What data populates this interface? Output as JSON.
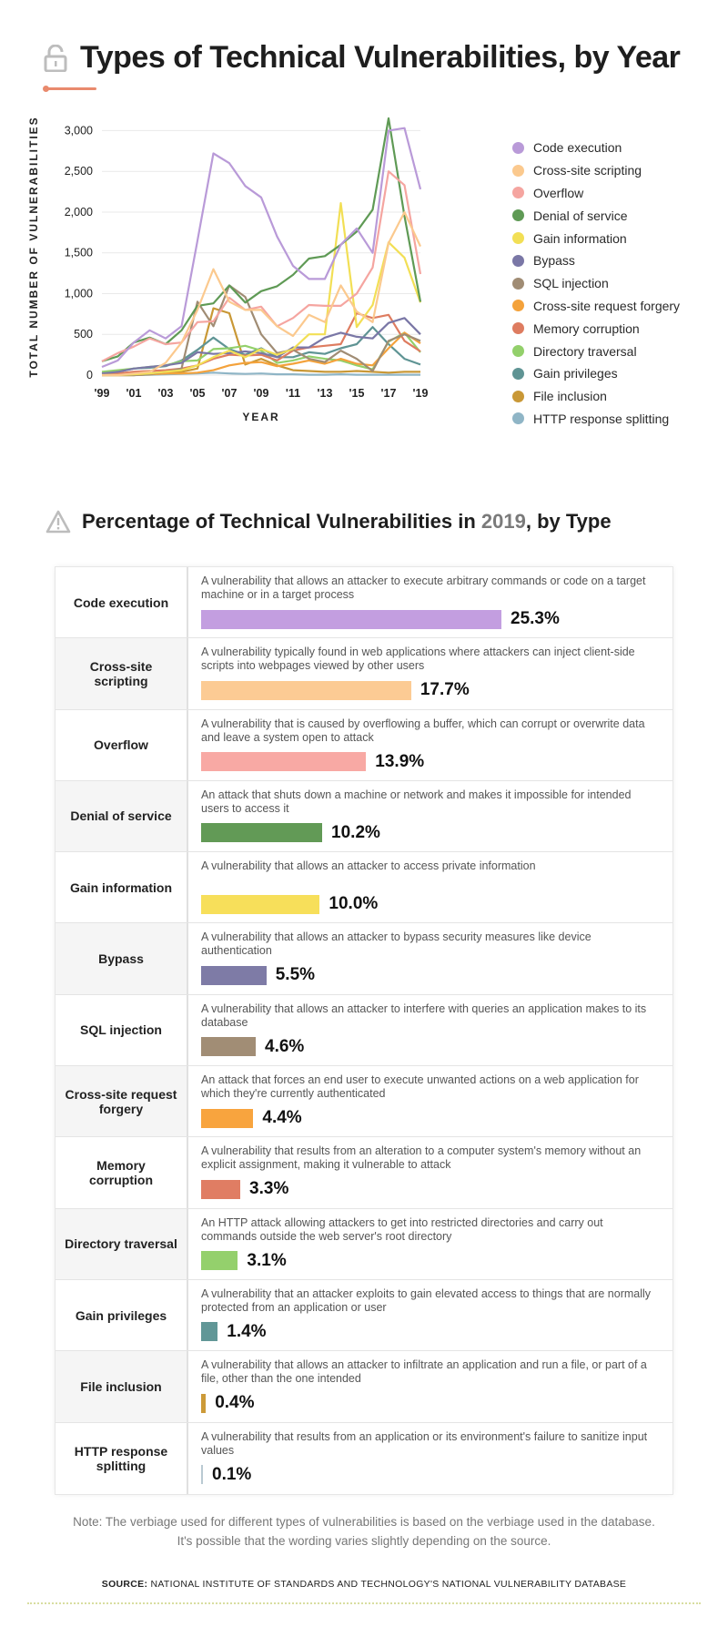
{
  "header": {
    "title": "Types of Technical Vulnerabilities, by Year"
  },
  "section2": {
    "title_prefix": "Percentage of Technical Vulnerabilities in ",
    "title_year": "2019",
    "title_suffix": ", by Type"
  },
  "chart_data": {
    "type": "line",
    "xlabel": "YEAR",
    "ylabel": "TOTAL NUMBER OF VULNERABILITIES",
    "x": [
      1999,
      2000,
      2001,
      2002,
      2003,
      2004,
      2005,
      2006,
      2007,
      2008,
      2009,
      2010,
      2011,
      2012,
      2013,
      2014,
      2015,
      2016,
      2017,
      2018,
      2019
    ],
    "x_ticks": [
      "'99",
      "'01",
      "'03",
      "'05",
      "'07",
      "'09",
      "'11",
      "'13",
      "'15",
      "'17",
      "'19"
    ],
    "x_tick_values": [
      1999,
      2001,
      2003,
      2005,
      2007,
      2009,
      2011,
      2013,
      2015,
      2017,
      2019
    ],
    "y_ticks": [
      "0",
      "500",
      "1,000",
      "1,500",
      "2,000",
      "2,500",
      "3,000"
    ],
    "y_tick_values": [
      0,
      500,
      1000,
      1500,
      2000,
      2500,
      3000
    ],
    "ylim": [
      0,
      3150
    ],
    "grid": true,
    "legend_position": "right",
    "series": [
      {
        "name": "Code execution",
        "color": "#b99ad8",
        "values": [
          100,
          180,
          400,
          550,
          450,
          600,
          1650,
          2720,
          2600,
          2320,
          2180,
          1700,
          1340,
          1180,
          1180,
          1600,
          1800,
          1500,
          3000,
          3030,
          2280
        ]
      },
      {
        "name": "Cross-site scripting",
        "color": "#fbc98e",
        "values": [
          0,
          0,
          20,
          40,
          150,
          400,
          800,
          1300,
          900,
          800,
          800,
          600,
          480,
          740,
          650,
          1100,
          780,
          650,
          1620,
          2000,
          1580
        ]
      },
      {
        "name": "Overflow",
        "color": "#f5a5a0",
        "values": [
          170,
          270,
          350,
          450,
          380,
          400,
          650,
          660,
          950,
          800,
          840,
          600,
          700,
          860,
          850,
          850,
          1000,
          1320,
          2500,
          2330,
          1240
        ]
      },
      {
        "name": "Denial of service",
        "color": "#5f9a55",
        "values": [
          170,
          230,
          400,
          460,
          380,
          550,
          850,
          880,
          1100,
          890,
          1030,
          1090,
          1230,
          1430,
          1460,
          1600,
          1760,
          2030,
          3150,
          1950,
          900
        ]
      },
      {
        "name": "Gain information",
        "color": "#f2df55",
        "values": [
          0,
          0,
          10,
          20,
          40,
          60,
          120,
          220,
          300,
          220,
          320,
          250,
          320,
          500,
          500,
          2110,
          590,
          860,
          1630,
          1440,
          890
        ]
      },
      {
        "name": "Bypass",
        "color": "#7a77a6",
        "values": [
          20,
          40,
          80,
          100,
          120,
          150,
          280,
          260,
          270,
          290,
          270,
          220,
          340,
          340,
          460,
          520,
          470,
          450,
          640,
          700,
          500
        ]
      },
      {
        "name": "SQL injection",
        "color": "#a08c74",
        "values": [
          0,
          0,
          0,
          10,
          40,
          80,
          900,
          600,
          1100,
          960,
          500,
          270,
          310,
          200,
          160,
          300,
          200,
          50,
          420,
          500,
          420
        ]
      },
      {
        "name": "Cross-site request forgery",
        "color": "#f4a23b",
        "values": [
          0,
          0,
          0,
          10,
          20,
          20,
          30,
          60,
          120,
          150,
          160,
          110,
          140,
          180,
          140,
          200,
          140,
          120,
          330,
          520,
          390
        ]
      },
      {
        "name": "Memory corruption",
        "color": "#de7c60",
        "values": [
          10,
          20,
          40,
          50,
          60,
          80,
          120,
          200,
          250,
          240,
          250,
          180,
          300,
          340,
          360,
          380,
          760,
          700,
          740,
          420,
          290
        ]
      },
      {
        "name": "Directory traversal",
        "color": "#93d06b",
        "values": [
          40,
          60,
          80,
          100,
          120,
          170,
          180,
          320,
          330,
          360,
          300,
          150,
          180,
          230,
          200,
          180,
          120,
          70,
          410,
          520,
          280
        ]
      },
      {
        "name": "Gain privileges",
        "color": "#5f9494",
        "values": [
          20,
          40,
          80,
          90,
          110,
          180,
          310,
          460,
          320,
          250,
          330,
          220,
          220,
          280,
          260,
          330,
          380,
          590,
          380,
          200,
          130
        ]
      },
      {
        "name": "File inclusion",
        "color": "#c99836",
        "values": [
          0,
          0,
          0,
          10,
          20,
          40,
          80,
          820,
          760,
          130,
          200,
          120,
          60,
          50,
          40,
          40,
          50,
          40,
          30,
          40,
          40
        ]
      },
      {
        "name": "HTTP response splitting",
        "color": "#8fb5c6",
        "values": [
          0,
          0,
          0,
          5,
          10,
          15,
          20,
          30,
          20,
          15,
          20,
          10,
          10,
          5,
          5,
          10,
          5,
          5,
          5,
          5,
          5
        ]
      }
    ]
  },
  "table": {
    "rows": [
      {
        "name": "Code execution",
        "desc": "A vulnerability that allows an attacker to execute arbitrary commands or code on a target machine or in a target process",
        "pct_label": "25.3%",
        "pct": 25.3,
        "color": "#c39ee0"
      },
      {
        "name": "Cross-site scripting",
        "desc": "A vulnerability typically found in web applications where attackers can inject client-side scripts into webpages viewed by other users",
        "pct_label": "17.7%",
        "pct": 17.7,
        "color": "#fccb94"
      },
      {
        "name": "Overflow",
        "desc": "A vulnerability that is caused by overflowing a buffer, which can corrupt or overwrite data and leave a system open to attack",
        "pct_label": "13.9%",
        "pct": 13.9,
        "color": "#f8a9a4"
      },
      {
        "name": "Denial of service",
        "desc": "An attack that shuts down a machine or network and makes it impossible for intended users to access it",
        "pct_label": "10.2%",
        "pct": 10.2,
        "color": "#629a56"
      },
      {
        "name": "Gain information",
        "desc": "A vulnerability that allows an attacker to access private information",
        "pct_label": "10.0%",
        "pct": 10.0,
        "color": "#f7df5a"
      },
      {
        "name": "Bypass",
        "desc": "A vulnerability that allows an attacker to bypass security measures like device authentication",
        "pct_label": "5.5%",
        "pct": 5.5,
        "color": "#7e7ba6"
      },
      {
        "name": "SQL injection",
        "desc": "A vulnerability that allows an attacker to interfere with queries an application makes to its database",
        "pct_label": "4.6%",
        "pct": 4.6,
        "color": "#a18d75"
      },
      {
        "name": "Cross-site request forgery",
        "desc": "An attack that forces an end user to execute unwanted actions on a web application for which they're currently authenticated",
        "pct_label": "4.4%",
        "pct": 4.4,
        "color": "#f8a43e"
      },
      {
        "name": "Memory corruption",
        "desc": "A vulnerability that results from an alteration to a computer system's memory without an explicit assignment, making it vulnerable to attack",
        "pct_label": "3.3%",
        "pct": 3.3,
        "color": "#e07d63"
      },
      {
        "name": "Directory traversal",
        "desc": "An HTTP attack allowing attackers to get into restricted directories and carry out commands outside the web server's root directory",
        "pct_label": "3.1%",
        "pct": 3.1,
        "color": "#94d06c"
      },
      {
        "name": "Gain privileges",
        "desc": "A vulnerability that an attacker exploits to gain elevated access to things that are normally protected from an application or user",
        "pct_label": "1.4%",
        "pct": 1.4,
        "color": "#619797"
      },
      {
        "name": "File inclusion",
        "desc": "A vulnerability that allows an attacker to infiltrate an application and run a file, or part of a file, other than the one intended",
        "pct_label": "0.4%",
        "pct": 0.4,
        "color": "#cc9a38"
      },
      {
        "name": "HTTP response splitting",
        "desc": "A vulnerability that results from an application or its environment's failure to sanitize input values",
        "pct_label": "0.1%",
        "pct": 0.1,
        "color": "#b9c9d2"
      }
    ]
  },
  "footer": {
    "note_line1": "Note: The verbiage used for different types of vulnerabilities is based on the verbiage used in the database.",
    "note_line2": "It's possible that the wording varies slightly depending on the source.",
    "source_label": "SOURCE:",
    "source_text": "NATIONAL INSTITUTE OF STANDARDS AND TECHNOLOGY'S NATIONAL VULNERABILITY DATABASE"
  }
}
